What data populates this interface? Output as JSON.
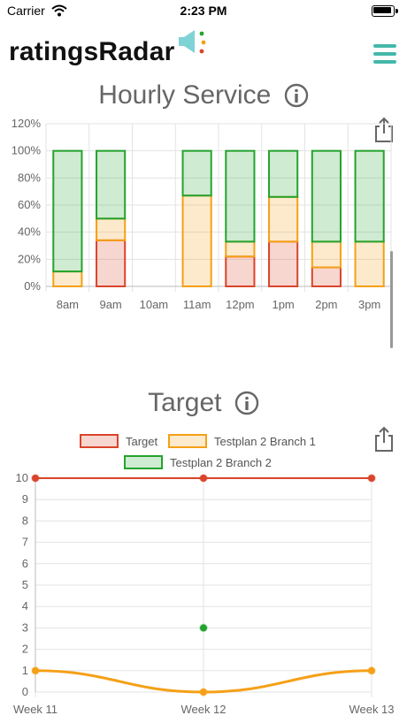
{
  "status_bar": {
    "carrier": "Carrier",
    "time": "2:23 PM"
  },
  "app": {
    "brand": "ratingsRadar"
  },
  "colors": {
    "red": "#d9442a",
    "orange": "#f5a017",
    "green": "#24a32f",
    "teal": "#44b8a8"
  },
  "hourly": {
    "title": "Hourly Service",
    "chart_data": {
      "type": "bar",
      "stacked": true,
      "categories": [
        "8am",
        "9am",
        "10am",
        "11am",
        "12pm",
        "1pm",
        "2pm",
        "3pm"
      ],
      "ylim": [
        0,
        120
      ],
      "yticks": [
        "0%",
        "20%",
        "40%",
        "60%",
        "80%",
        "100%",
        "120%"
      ],
      "series": [
        {
          "values": [
            0,
            34,
            0,
            0,
            22,
            33,
            14,
            0
          ],
          "color": "red"
        },
        {
          "values": [
            11,
            16,
            0,
            67,
            11,
            33,
            19,
            33
          ],
          "color": "orange"
        },
        {
          "values": [
            89,
            50,
            0,
            33,
            67,
            34,
            67,
            67
          ],
          "color": "green"
        }
      ],
      "grid": true
    }
  },
  "target": {
    "title": "Target",
    "legend": [
      "Target",
      "Testplan 2 Branch 1",
      "Testplan 2 Branch 2"
    ],
    "chart_data": {
      "type": "line",
      "categories": [
        "Week 11",
        "Week 12",
        "Week 13"
      ],
      "ylim": [
        0,
        10
      ],
      "yticks": [
        "0",
        "1",
        "2",
        "3",
        "4",
        "5",
        "6",
        "7",
        "8",
        "9",
        "10"
      ],
      "series": [
        {
          "name": "Target",
          "values": [
            10,
            10,
            10
          ],
          "color": "red"
        },
        {
          "name": "Testplan 2 Branch 1",
          "values": [
            1,
            0,
            1
          ],
          "color": "orange"
        },
        {
          "name": "Testplan 2 Branch 2",
          "values": [
            null,
            3,
            null
          ],
          "color": "green"
        }
      ],
      "grid": true,
      "legend_position": "top"
    }
  }
}
